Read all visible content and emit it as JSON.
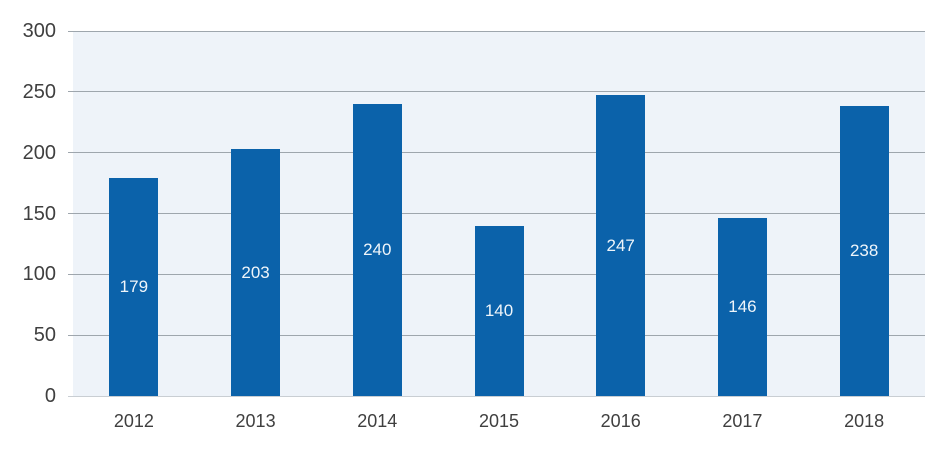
{
  "chart_data": {
    "type": "bar",
    "title": "",
    "xlabel": "",
    "ylabel": "",
    "categories": [
      "2012",
      "2013",
      "2014",
      "2015",
      "2016",
      "2017",
      "2018"
    ],
    "values": [
      179,
      203,
      240,
      140,
      247,
      146,
      238
    ],
    "data_labels_shown": true,
    "data_label_position": "center",
    "yticks": [
      0,
      50,
      100,
      150,
      200,
      250,
      300
    ],
    "ylim": [
      0,
      300
    ],
    "grid": true,
    "legend_position": "none",
    "colors": {
      "bar": "#0B62AA",
      "plot_background": "#EEF3F9",
      "page_background": "#FFFFFF",
      "gridline": "#9EA6AD",
      "axis_baseline": "#C9CED3",
      "tick_label_text": "#3F3F3F",
      "data_label_text": "#EFF5FA"
    }
  }
}
